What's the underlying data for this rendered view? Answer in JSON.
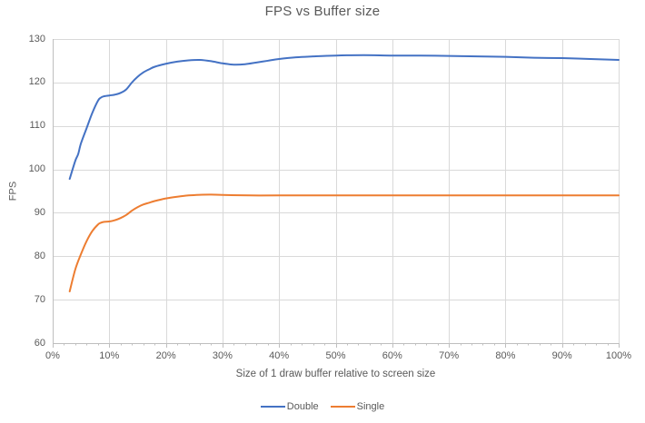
{
  "colors": {
    "double_series": "#4472C4",
    "single_series": "#ED7D31",
    "gridline": "#D9D9D9",
    "axis_line": "#BFBFBF",
    "text": "#595959",
    "background": "#FFFFFF"
  },
  "chart_data": {
    "type": "line",
    "title": "FPS vs Buffer size",
    "xlabel": "Size of 1 draw buffer relative to screen size",
    "ylabel": "FPS",
    "xlim": [
      0,
      100
    ],
    "ylim": [
      60,
      130
    ],
    "x_tick_labels": [
      "0%",
      "10%",
      "20%",
      "30%",
      "40%",
      "50%",
      "60%",
      "70%",
      "80%",
      "90%",
      "100%"
    ],
    "x_tick_values": [
      0,
      10,
      20,
      30,
      40,
      50,
      60,
      70,
      80,
      90,
      100
    ],
    "x_minor_tick_step": 2,
    "y_tick_values": [
      60,
      70,
      80,
      90,
      100,
      110,
      120,
      130
    ],
    "grid": true,
    "smoothed_lines": true,
    "line_markers": false,
    "legend_position": "bottom",
    "series": [
      {
        "name": "Double",
        "color": "#4472C4",
        "points": [
          [
            3,
            97.8
          ],
          [
            4,
            102
          ],
          [
            4.5,
            103.5
          ],
          [
            5,
            106
          ],
          [
            6,
            109.5
          ],
          [
            7,
            113
          ],
          [
            8,
            115.8
          ],
          [
            8.5,
            116.5
          ],
          [
            9,
            116.8
          ],
          [
            10,
            117
          ],
          [
            11,
            117.2
          ],
          [
            12,
            117.6
          ],
          [
            13,
            118.4
          ],
          [
            14,
            120
          ],
          [
            15,
            121.3
          ],
          [
            16,
            122.3
          ],
          [
            17,
            123
          ],
          [
            18,
            123.6
          ],
          [
            20,
            124.3
          ],
          [
            22,
            124.8
          ],
          [
            24,
            125.1
          ],
          [
            26,
            125.2
          ],
          [
            28,
            124.9
          ],
          [
            30,
            124.4
          ],
          [
            32,
            124.1
          ],
          [
            34,
            124.2
          ],
          [
            36,
            124.6
          ],
          [
            38,
            125
          ],
          [
            40,
            125.4
          ],
          [
            43,
            125.8
          ],
          [
            46,
            126
          ],
          [
            50,
            126.2
          ],
          [
            55,
            126.3
          ],
          [
            60,
            126.2
          ],
          [
            65,
            126.2
          ],
          [
            70,
            126.1
          ],
          [
            75,
            126
          ],
          [
            80,
            125.9
          ],
          [
            85,
            125.7
          ],
          [
            90,
            125.6
          ],
          [
            95,
            125.4
          ],
          [
            100,
            125.2
          ]
        ]
      },
      {
        "name": "Single",
        "color": "#ED7D31",
        "points": [
          [
            3,
            71.9
          ],
          [
            4,
            77
          ],
          [
            5,
            80.5
          ],
          [
            6,
            83.5
          ],
          [
            7,
            85.8
          ],
          [
            8,
            87.3
          ],
          [
            8.5,
            87.7
          ],
          [
            9,
            87.9
          ],
          [
            10,
            88
          ],
          [
            11,
            88.3
          ],
          [
            12,
            88.8
          ],
          [
            13,
            89.5
          ],
          [
            14,
            90.5
          ],
          [
            15,
            91.3
          ],
          [
            16,
            91.9
          ],
          [
            17,
            92.3
          ],
          [
            18,
            92.7
          ],
          [
            20,
            93.3
          ],
          [
            22,
            93.7
          ],
          [
            24,
            94
          ],
          [
            26,
            94.15
          ],
          [
            28,
            94.2
          ],
          [
            30,
            94.1
          ],
          [
            35,
            94
          ],
          [
            40,
            94
          ],
          [
            50,
            94
          ],
          [
            60,
            94
          ],
          [
            70,
            94
          ],
          [
            80,
            94
          ],
          [
            90,
            94
          ],
          [
            100,
            94
          ]
        ]
      }
    ]
  }
}
